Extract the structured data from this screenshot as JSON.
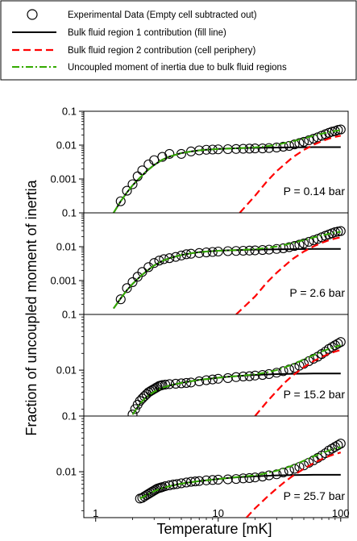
{
  "chart_data": {
    "type": "scatter",
    "xlabel": "Temperature [mK]",
    "ylabel": "Fraction of uncoupled moment of inertia",
    "x_scale": "log",
    "y_scale": "log",
    "xlim": [
      0.8,
      115
    ],
    "x_ticks": [
      1,
      10,
      100
    ],
    "x_tick_labels": [
      "1",
      "10",
      "100"
    ],
    "legend": {
      "placement": "top",
      "entries": [
        {
          "label": "Experimental Data (Empty cell subtracted out)",
          "style": "open-circle",
          "color": "#000000"
        },
        {
          "label": "Bulk fluid region 1 contribution (fill line)",
          "style": "solid",
          "color": "#000000"
        },
        {
          "label": "Bulk fluid region 2 contribution (cell periphery)",
          "style": "dashed",
          "color": "#ff0000"
        },
        {
          "label": "Uncoupled moment of inertia due to bulk fluid regions",
          "style": "dash-dot",
          "color": "#33aa00"
        }
      ]
    },
    "panels": [
      {
        "label": "P = 0.14 bar",
        "ylim": [
          0.0001,
          0.1
        ],
        "y_ticks": [
          0.001,
          0.01,
          0.1
        ],
        "y_tick_labels": [
          "0.001",
          "0.01",
          "0.1"
        ],
        "experimental": {
          "x": [
            1.6,
            1.8,
            2.0,
            2.2,
            2.4,
            2.7,
            3.0,
            3.5,
            4.0,
            5.0,
            6.0,
            7.0,
            8.0,
            9.0,
            10,
            12,
            14,
            16,
            18,
            20,
            23,
            26,
            30,
            34,
            38,
            42,
            46,
            50,
            55,
            60,
            65,
            70,
            75,
            80,
            85,
            90,
            95,
            100
          ],
          "y": [
            0.00022,
            0.00045,
            0.0007,
            0.0012,
            0.0018,
            0.0027,
            0.0036,
            0.0045,
            0.0055,
            0.0055,
            0.0065,
            0.007,
            0.0073,
            0.0074,
            0.0075,
            0.0076,
            0.0077,
            0.0078,
            0.0079,
            0.008,
            0.008,
            0.0082,
            0.0085,
            0.009,
            0.0095,
            0.0105,
            0.0115,
            0.0125,
            0.014,
            0.0155,
            0.017,
            0.019,
            0.021,
            0.023,
            0.025,
            0.026,
            0.028,
            0.029
          ]
        },
        "region1": {
          "x": [
            1.4,
            1.6,
            1.8,
            2.0,
            2.3,
            2.6,
            3.0,
            3.5,
            4.0,
            5.0,
            6.0,
            7.0,
            8.0,
            10,
            12,
            15,
            20,
            30,
            40,
            60,
            80,
            100
          ],
          "y": [
            0.0001,
            0.00022,
            0.0004,
            0.00065,
            0.0011,
            0.0017,
            0.0026,
            0.0037,
            0.0046,
            0.0058,
            0.0065,
            0.007,
            0.0073,
            0.0077,
            0.0079,
            0.0081,
            0.0083,
            0.0085,
            0.0086,
            0.0087,
            0.0087,
            0.0087
          ]
        },
        "region2": {
          "x": [
            15,
            20,
            25,
            30,
            40,
            50,
            60,
            70,
            80,
            90,
            100
          ],
          "y": [
            0.0001,
            0.00032,
            0.00085,
            0.0017,
            0.0042,
            0.0072,
            0.0102,
            0.013,
            0.0155,
            0.0175,
            0.019
          ]
        },
        "total": {
          "x": [
            1.4,
            1.6,
            1.8,
            2.0,
            2.3,
            2.6,
            3.0,
            3.5,
            4.0,
            5.0,
            6.0,
            7.0,
            8.0,
            10,
            12,
            15,
            20,
            25,
            30,
            40,
            50,
            60,
            70,
            80,
            90,
            100
          ],
          "y": [
            0.0001,
            0.00022,
            0.0004,
            0.00065,
            0.0011,
            0.0017,
            0.0026,
            0.0037,
            0.0046,
            0.0058,
            0.0065,
            0.007,
            0.0073,
            0.0077,
            0.0079,
            0.0081,
            0.0086,
            0.0093,
            0.0102,
            0.0128,
            0.0158,
            0.0189,
            0.0217,
            0.0242,
            0.0262,
            0.0277
          ]
        }
      },
      {
        "label": "P = 2.6 bar",
        "ylim": [
          0.0001,
          0.1
        ],
        "y_ticks": [
          0.001,
          0.01,
          0.1
        ],
        "y_tick_labels": [
          "0.001",
          "0.01",
          "0.1"
        ],
        "experimental": {
          "x": [
            1.6,
            1.8,
            2.0,
            2.2,
            2.4,
            2.7,
            3.0,
            3.3,
            3.6,
            4.0,
            4.5,
            5.0,
            5.5,
            6.0,
            7.0,
            8.0,
            9.0,
            10,
            12,
            14,
            16,
            18,
            20,
            23,
            26,
            30,
            34,
            38,
            42,
            46,
            50,
            55,
            60,
            65,
            70,
            75,
            80,
            85,
            90,
            95,
            100
          ],
          "y": [
            0.00028,
            0.0006,
            0.0009,
            0.0013,
            0.0018,
            0.0025,
            0.0033,
            0.0039,
            0.0043,
            0.0046,
            0.005,
            0.0055,
            0.006,
            0.0062,
            0.0065,
            0.0068,
            0.007,
            0.0072,
            0.0074,
            0.0075,
            0.0076,
            0.0077,
            0.0078,
            0.008,
            0.0082,
            0.0086,
            0.009,
            0.0097,
            0.0105,
            0.0115,
            0.0125,
            0.014,
            0.0155,
            0.017,
            0.019,
            0.021,
            0.023,
            0.025,
            0.027,
            0.028,
            0.029
          ]
        },
        "region1": {
          "x": [
            1.4,
            1.6,
            1.8,
            2.0,
            2.3,
            2.6,
            3.0,
            3.5,
            4.0,
            5.0,
            6.0,
            7.0,
            8.0,
            10,
            12,
            15,
            20,
            30,
            40,
            60,
            80,
            100
          ],
          "y": [
            0.00015,
            0.0003,
            0.00052,
            0.0008,
            0.0013,
            0.0019,
            0.0028,
            0.0038,
            0.0046,
            0.0057,
            0.0064,
            0.0069,
            0.0072,
            0.0076,
            0.0078,
            0.008,
            0.0082,
            0.0084,
            0.0085,
            0.0086,
            0.0086,
            0.0086
          ]
        },
        "region2": {
          "x": [
            14,
            20,
            25,
            30,
            40,
            50,
            60,
            70,
            80,
            90,
            100
          ],
          "y": [
            0.0001,
            0.00034,
            0.00088,
            0.0017,
            0.0042,
            0.0072,
            0.0102,
            0.013,
            0.0155,
            0.0175,
            0.019
          ]
        },
        "total": {
          "x": [
            1.4,
            1.6,
            1.8,
            2.0,
            2.3,
            2.6,
            3.0,
            3.5,
            4.0,
            5.0,
            6.0,
            7.0,
            8.0,
            10,
            12,
            15,
            20,
            25,
            30,
            40,
            50,
            60,
            70,
            80,
            90,
            100
          ],
          "y": [
            0.00015,
            0.0003,
            0.00052,
            0.0008,
            0.0013,
            0.0019,
            0.0028,
            0.0038,
            0.0046,
            0.0057,
            0.0064,
            0.0069,
            0.0072,
            0.0076,
            0.0078,
            0.008,
            0.0085,
            0.0092,
            0.0101,
            0.0127,
            0.0157,
            0.0188,
            0.0216,
            0.0241,
            0.0261,
            0.0276
          ]
        }
      },
      {
        "label": "P = 15.2 bar",
        "ylim": [
          0.0015,
          0.1
        ],
        "y_ticks": [
          0.01,
          0.1
        ],
        "y_tick_labels": [
          "0.01",
          "0.1"
        ],
        "experimental": {
          "x": [
            2.0,
            2.1,
            2.2,
            2.3,
            2.4,
            2.5,
            2.6,
            2.7,
            2.8,
            2.9,
            3.0,
            3.1,
            3.2,
            3.3,
            3.4,
            3.5,
            3.7,
            4.0,
            4.5,
            5.0,
            5.5,
            6.0,
            7.0,
            8.0,
            9.0,
            10,
            12,
            14,
            16,
            18,
            20,
            23,
            26,
            30,
            34,
            38,
            42,
            46,
            50,
            55,
            60,
            65,
            70,
            75,
            80,
            85,
            90,
            95,
            100
          ],
          "y": [
            0.0016,
            0.002,
            0.0024,
            0.0028,
            0.0031,
            0.0034,
            0.0037,
            0.004,
            0.0042,
            0.0044,
            0.0046,
            0.0048,
            0.005,
            0.0052,
            0.0053,
            0.0054,
            0.0055,
            0.0056,
            0.0057,
            0.0058,
            0.0059,
            0.006,
            0.0063,
            0.0066,
            0.0068,
            0.007,
            0.0072,
            0.0075,
            0.0077,
            0.0078,
            0.008,
            0.0082,
            0.0085,
            0.009,
            0.0096,
            0.0103,
            0.011,
            0.012,
            0.013,
            0.0145,
            0.016,
            0.0175,
            0.0195,
            0.0215,
            0.024,
            0.026,
            0.028,
            0.03,
            0.032
          ]
        },
        "region1": {
          "x": [
            2.0,
            2.3,
            2.6,
            3.0,
            3.5,
            4.0,
            5.0,
            6.0,
            7.0,
            8.0,
            10,
            12,
            15,
            20,
            30,
            40,
            60,
            80,
            100
          ],
          "y": [
            0.0016,
            0.0025,
            0.0033,
            0.0041,
            0.0048,
            0.0053,
            0.0059,
            0.0063,
            0.0067,
            0.0069,
            0.0073,
            0.0076,
            0.0079,
            0.0082,
            0.0085,
            0.0086,
            0.0087,
            0.0087,
            0.0087
          ]
        },
        "region2": {
          "x": [
            20,
            25,
            30,
            35,
            40,
            50,
            60,
            70,
            80,
            90,
            100
          ],
          "y": [
            0.0015,
            0.0027,
            0.0042,
            0.006,
            0.0078,
            0.0113,
            0.0145,
            0.0172,
            0.0196,
            0.0215,
            0.023
          ]
        },
        "total": {
          "x": [
            2.0,
            2.3,
            2.6,
            3.0,
            3.5,
            4.0,
            5.0,
            6.0,
            7.0,
            8.0,
            10,
            12,
            15,
            20,
            25,
            30,
            40,
            50,
            60,
            70,
            80,
            90,
            100
          ],
          "y": [
            0.0016,
            0.0025,
            0.0033,
            0.0041,
            0.0048,
            0.0053,
            0.0059,
            0.0063,
            0.0067,
            0.0069,
            0.0073,
            0.0076,
            0.0079,
            0.0084,
            0.0091,
            0.01,
            0.0125,
            0.0155,
            0.0185,
            0.0215,
            0.024,
            0.0262,
            0.028
          ]
        }
      },
      {
        "label": "P = 25.7 bar",
        "ylim": [
          0.0015,
          0.1
        ],
        "y_ticks": [
          0.01,
          0.1
        ],
        "y_tick_labels": [
          "0.01",
          "0.1"
        ],
        "experimental": {
          "x": [
            2.3,
            2.4,
            2.5,
            2.6,
            2.7,
            2.8,
            2.9,
            3.0,
            3.1,
            3.2,
            3.3,
            3.4,
            3.5,
            3.7,
            4.0,
            4.3,
            4.6,
            5.0,
            5.5,
            6.0,
            6.5,
            7.0,
            8.0,
            9.0,
            10,
            12,
            14,
            16,
            18,
            20,
            23,
            26,
            30,
            34,
            38,
            42,
            46,
            50,
            55,
            60,
            65,
            70,
            75,
            80,
            85,
            90,
            95,
            100
          ],
          "y": [
            0.0033,
            0.0034,
            0.0036,
            0.0038,
            0.004,
            0.0042,
            0.0044,
            0.0046,
            0.0048,
            0.005,
            0.0051,
            0.0052,
            0.0053,
            0.0055,
            0.0057,
            0.0059,
            0.006,
            0.0062,
            0.0064,
            0.0066,
            0.0067,
            0.0068,
            0.007,
            0.0071,
            0.0072,
            0.0073,
            0.0074,
            0.0076,
            0.0077,
            0.0079,
            0.0082,
            0.0086,
            0.009,
            0.0097,
            0.0105,
            0.0113,
            0.0122,
            0.013,
            0.0145,
            0.016,
            0.0177,
            0.0195,
            0.0215,
            0.024,
            0.026,
            0.028,
            0.03,
            0.032
          ]
        },
        "region1": {
          "x": [
            2.3,
            2.6,
            3.0,
            3.5,
            4.0,
            5.0,
            6.0,
            7.0,
            8.0,
            10,
            12,
            15,
            20,
            30,
            40,
            60,
            80,
            100
          ],
          "y": [
            0.0033,
            0.0038,
            0.0045,
            0.0051,
            0.0055,
            0.0061,
            0.0065,
            0.0068,
            0.007,
            0.0074,
            0.0077,
            0.008,
            0.0083,
            0.0086,
            0.0087,
            0.0088,
            0.0088,
            0.0088
          ]
        },
        "region2": {
          "x": [
            17,
            20,
            25,
            30,
            35,
            40,
            50,
            60,
            70,
            80,
            90,
            100
          ],
          "y": [
            0.0015,
            0.0022,
            0.0035,
            0.005,
            0.0066,
            0.0082,
            0.0113,
            0.0142,
            0.0168,
            0.019,
            0.0208,
            0.0222
          ]
        },
        "total": {
          "x": [
            2.3,
            2.6,
            3.0,
            3.5,
            4.0,
            5.0,
            6.0,
            7.0,
            8.0,
            10,
            12,
            15,
            20,
            25,
            30,
            40,
            50,
            60,
            70,
            80,
            90,
            100
          ],
          "y": [
            0.0033,
            0.0038,
            0.0045,
            0.0051,
            0.0055,
            0.0061,
            0.0065,
            0.0068,
            0.007,
            0.0074,
            0.0077,
            0.0081,
            0.0086,
            0.0094,
            0.0104,
            0.0128,
            0.0158,
            0.0188,
            0.0215,
            0.024,
            0.026,
            0.0277
          ]
        }
      }
    ]
  }
}
